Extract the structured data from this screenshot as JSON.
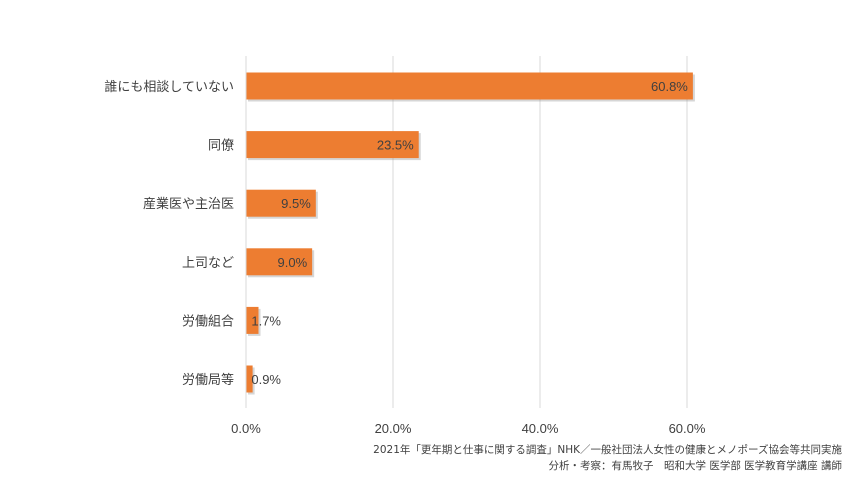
{
  "chart_data": {
    "type": "bar",
    "orientation": "horizontal",
    "categories": [
      "誰にも相談していない",
      "同僚",
      "産業医や主治医",
      "上司など",
      "労働組合",
      "労働局等"
    ],
    "values": [
      60.8,
      23.5,
      9.5,
      9.0,
      1.7,
      0.9
    ],
    "data_labels": [
      "60.8%",
      "23.5%",
      "9.5%",
      "9.0%",
      "1.7%",
      "0.9%"
    ],
    "x_ticks": [
      "0.0%",
      "20.0%",
      "40.0%",
      "60.0%"
    ],
    "xlim": [
      0,
      80
    ],
    "grid": true,
    "bar_color": "#ED7D31"
  },
  "source": {
    "line1": "2021年「更年期と仕事に関する調査」NHK／一般社団法人女性の健康とメノポーズ協会等共同実施",
    "line2": "分析・考察：有馬牧子　昭和大学 医学部 医学教育学講座 講師"
  }
}
